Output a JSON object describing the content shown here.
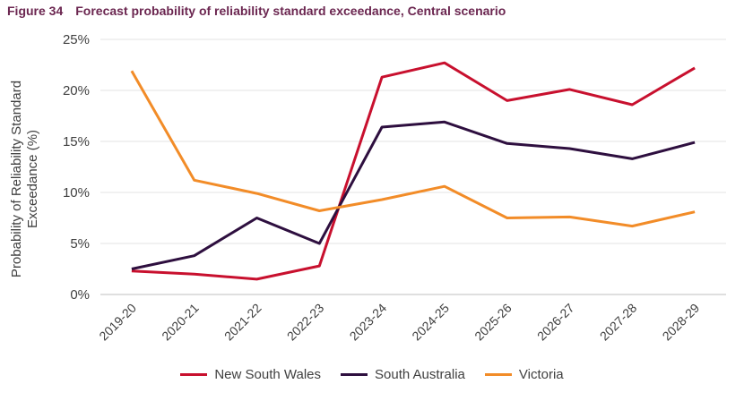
{
  "figure": {
    "label": "Figure 34",
    "title": "Forecast probability of reliability standard exceedance, Central scenario"
  },
  "chart_data": {
    "type": "line",
    "ylabel_line1": "Probability of Reliability Standard",
    "ylabel_line2": "Exceedance (%)",
    "xlabel": "",
    "ylim": [
      0,
      25
    ],
    "yticks": [
      "0%",
      "5%",
      "10%",
      "15%",
      "20%",
      "25%"
    ],
    "grid": true,
    "legend_position": "bottom",
    "categories": [
      "2019-20",
      "2020-21",
      "2021-22",
      "2022-23",
      "2023-24",
      "2024-25",
      "2025-26",
      "2026-27",
      "2027-28",
      "2028-29"
    ],
    "series": [
      {
        "name": "New South Wales",
        "color": "#c8102e",
        "values": [
          2.3,
          2.0,
          1.5,
          2.8,
          21.3,
          22.7,
          19.0,
          20.1,
          18.6,
          22.2
        ]
      },
      {
        "name": "South Australia",
        "color": "#2e0f3f",
        "values": [
          2.5,
          3.8,
          7.5,
          5.0,
          16.4,
          16.9,
          14.8,
          14.3,
          13.3,
          14.9
        ]
      },
      {
        "name": "Victoria",
        "color": "#f28c28",
        "values": [
          21.9,
          11.2,
          9.9,
          8.2,
          9.3,
          10.6,
          7.5,
          7.6,
          6.7,
          8.1
        ]
      }
    ]
  }
}
